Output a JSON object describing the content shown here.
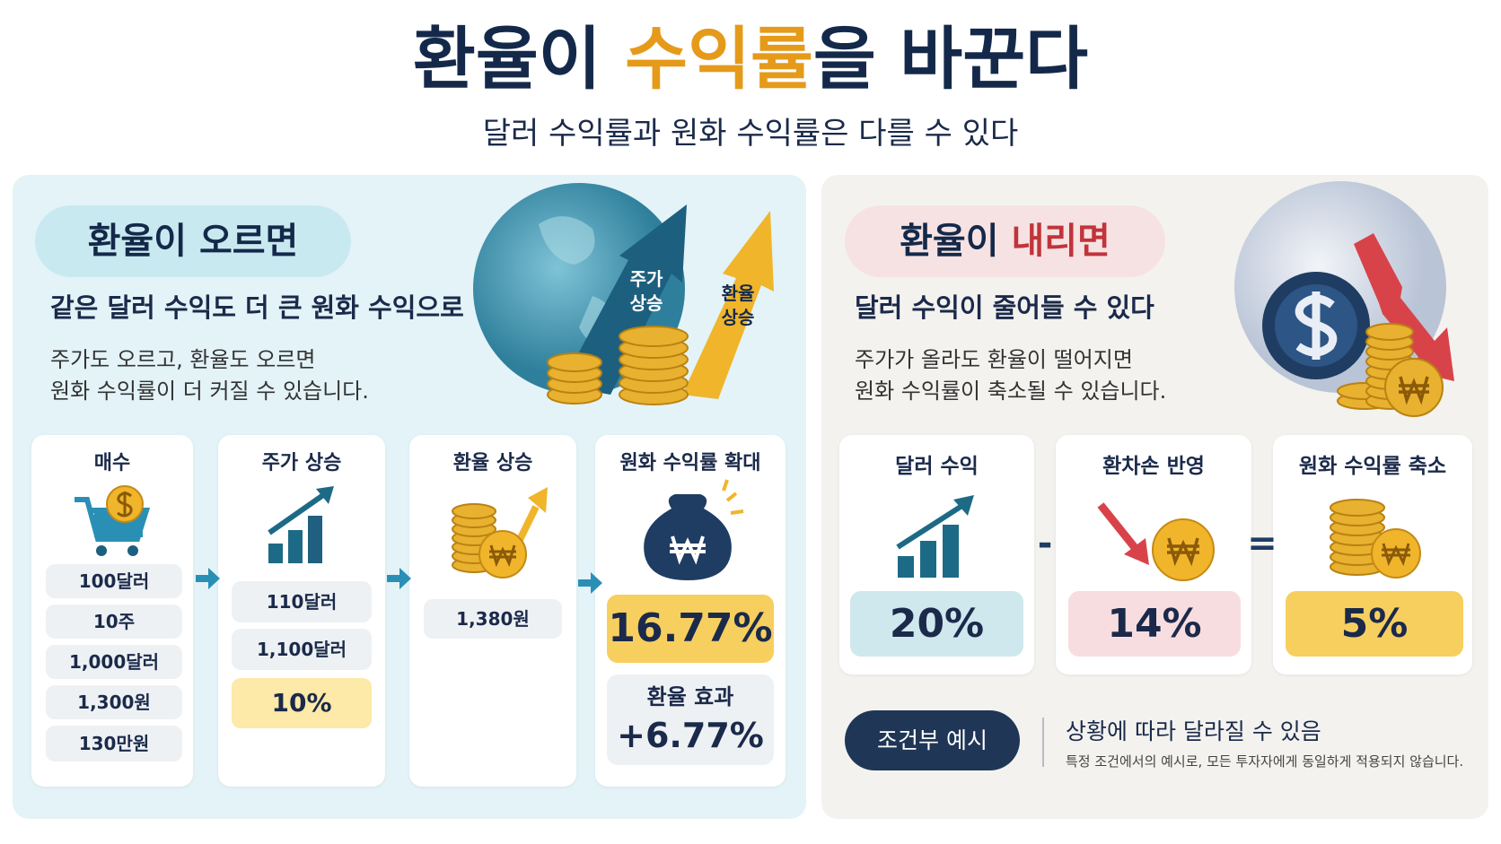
{
  "header": {
    "title": {
      "lead": "환율이 ",
      "accent": "수익률",
      "tail": "을 바꾼다"
    },
    "subtitle": "달러 수익률과 원화 수익률은 다를 수 있다"
  },
  "rise_panel": {
    "badge": "환율이 오르면",
    "headline": "같은 달러 수익도 더 큰 원화 수익으로",
    "description": [
      "주가도 오르고, 환율도 오르면",
      "원화 수익률이 더 커질 수 있습니다."
    ],
    "illustration_labels": [
      [
        "주가",
        "상승"
      ],
      [
        "환율",
        "상승"
      ]
    ],
    "steps": [
      {
        "title": "매수",
        "items": [
          "100달러",
          "10주",
          "1,000달러",
          "1,300원",
          "130만원"
        ]
      },
      {
        "title": "주가 상승",
        "items": [
          "110달러",
          "1,100달러"
        ],
        "highlight": "10%"
      },
      {
        "title": "환율 상승",
        "items": [
          "1,380원"
        ]
      },
      {
        "title": "원화 수익률 확대",
        "highlight": "16.77%",
        "effect_label": "환율 효과",
        "effect_value": "+6.77%"
      }
    ]
  },
  "fall_panel": {
    "badge": {
      "lead": "환율이 ",
      "accent": "내리면"
    },
    "headline": "달러 수익이 줄어들 수 있다",
    "description": [
      "주가가 올라도 환율이 떨어지면",
      "원화 수익률이 축소될 수 있습니다."
    ],
    "steps": [
      {
        "title": "달러 수익",
        "value": "20%"
      },
      {
        "title": "환차손 반영",
        "value": "14%"
      },
      {
        "title": "원화 수익률 축소",
        "value": "5%"
      }
    ],
    "operators": [
      "-",
      "="
    ]
  },
  "footer": {
    "badge": "조건부 예시",
    "note_title": "상황에 따라 달라질 수 있음",
    "note_detail": "특정 조건에서의 예시로, 모든 투자자에게 동일하게 적용되지 않습니다."
  }
}
